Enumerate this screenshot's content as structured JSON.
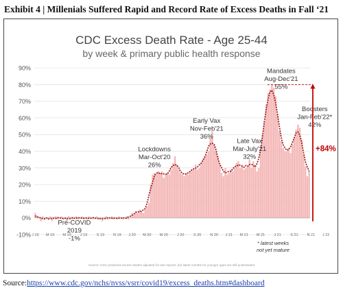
{
  "header": {
    "exhibit_title": "Exhibit 4 | Millenials Suffered Rapid and Record Rate of Excess Deaths in Fall ‘21"
  },
  "footer": {
    "source_label": "Source:",
    "source_url": "https://www.cdc.gov/nchs/nvss/vsrr/covid19/excess_deaths.htm#dashboard"
  },
  "chart_data": {
    "type": "bar",
    "title": "CDC Excess Death Rate - Age 25-44",
    "subtitle": "by week & primary public health response",
    "ylim": [
      -10,
      90
    ],
    "yticks": [
      "-10%",
      "0%",
      "10%",
      "20%",
      "30%",
      "40%",
      "50%",
      "60%",
      "70%",
      "80%",
      "90%"
    ],
    "ytick_values": [
      -10,
      0,
      10,
      20,
      30,
      40,
      50,
      60,
      70,
      80,
      90
    ],
    "xticks": [
      {
        "label": "J 19",
        "week": 0
      },
      {
        "label": "M 19",
        "week": 8
      },
      {
        "label": "M 19",
        "week": 17
      },
      {
        "label": "J 19",
        "week": 26
      },
      {
        "label": "S 19",
        "week": 35
      },
      {
        "label": "N 19",
        "week": 44
      },
      {
        "label": "J 20",
        "week": 52
      },
      {
        "label": "M 20",
        "week": 60
      },
      {
        "label": "M 20",
        "week": 69
      },
      {
        "label": "J 20",
        "week": 78
      },
      {
        "label": "S 20",
        "week": 87
      },
      {
        "label": "N 20",
        "week": 96
      },
      {
        "label": "J 21",
        "week": 104
      },
      {
        "label": "M 21",
        "week": 112
      },
      {
        "label": "M 21",
        "week": 121
      },
      {
        "label": "J 21",
        "week": 130
      },
      {
        "label": "S 21",
        "week": 139
      },
      {
        "label": "N 21",
        "week": 148
      },
      {
        "label": "J 22",
        "week": 156
      }
    ],
    "series": [
      {
        "values": [
          3,
          1,
          0,
          -2,
          1,
          -1,
          0,
          -1,
          1,
          -2,
          0,
          1,
          -1,
          0,
          1,
          -1,
          0,
          -2,
          1,
          0,
          -1,
          0,
          1,
          -1,
          0,
          1,
          -1,
          0,
          -1,
          1,
          0,
          -1,
          0,
          1,
          -1,
          0,
          -2,
          0,
          1,
          -1,
          0,
          1,
          -1,
          0,
          -1,
          1,
          0,
          -1,
          0,
          1,
          -1,
          0,
          3,
          2,
          4,
          3,
          5,
          4,
          3,
          5,
          7,
          9,
          20,
          26,
          27,
          26,
          28,
          27,
          28,
          24,
          26,
          27,
          26,
          29,
          33,
          37,
          32,
          29,
          27,
          26,
          25,
          27,
          26,
          28,
          29,
          29,
          32,
          29,
          30,
          33,
          35,
          37,
          38,
          40,
          48,
          52,
          44,
          40,
          37,
          32,
          27,
          25,
          30,
          26,
          27,
          29,
          28,
          30,
          33,
          34,
          30,
          32,
          29,
          30,
          31,
          35,
          30,
          34,
          31,
          28,
          30,
          40,
          50,
          58,
          68,
          75,
          77,
          80,
          78,
          73,
          62,
          52,
          46,
          42,
          40,
          40,
          42,
          39,
          44,
          48,
          53,
          56,
          54,
          47,
          38,
          31,
          25,
          28
        ]
      }
    ],
    "trend_color": "#9e1b1b",
    "bar_color": "#f4b9b9",
    "annotations": [
      {
        "lines": [
          "Pre-COVID",
          "2019",
          "-1%"
        ],
        "week": 21,
        "y": -4
      },
      {
        "lines": [
          "Lockdowns",
          "Mar-Oct'20",
          "26%"
        ],
        "week": 64,
        "y": 40
      },
      {
        "lines": [
          "Early Vax",
          "Nov-Feb'21",
          "36%"
        ],
        "week": 92,
        "y": 57
      },
      {
        "lines": [
          "Late Vax",
          "Mar-July'21",
          "32%"
        ],
        "week": 115,
        "y": 45
      },
      {
        "lines": [
          "Mandates",
          "Aug-Dec'21",
          "55%"
        ],
        "week": 132,
        "y": 87
      },
      {
        "lines": [
          "Boosters",
          "Jan-Feb'22*",
          "42%"
        ],
        "week": 150,
        "y": 64
      }
    ],
    "change_label": "+84%",
    "change_color": "#c00000",
    "note_lines": [
      "* latest weeks",
      "not yet mature"
    ],
    "footnote": "Source: CDC predicted excess deaths adjusted for late reports, but latest months for younger ages are still understated"
  }
}
